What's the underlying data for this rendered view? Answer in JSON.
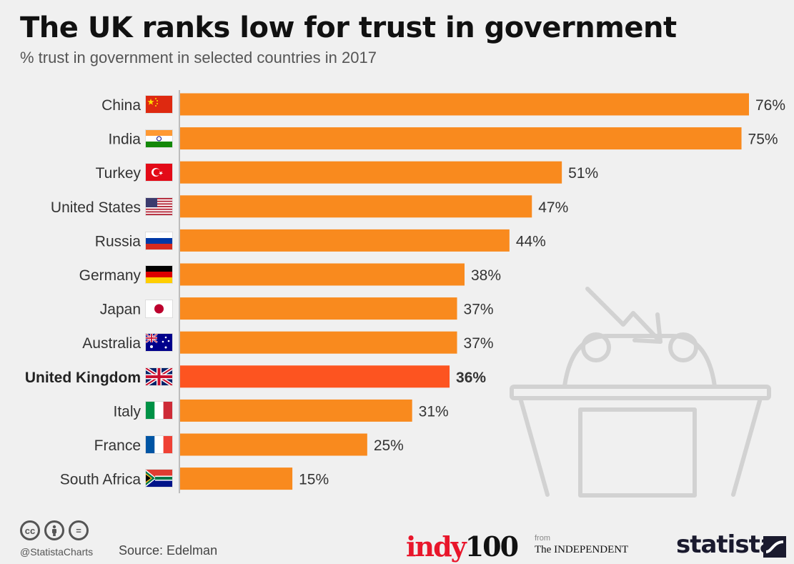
{
  "title": "The UK ranks low for trust in government",
  "subtitle": "% trust in government in selected countries in 2017",
  "chart_data": {
    "type": "bar",
    "orientation": "horizontal",
    "categories": [
      "China",
      "India",
      "Turkey",
      "United States",
      "Russia",
      "Germany",
      "Japan",
      "Australia",
      "United Kingdom",
      "Italy",
      "France",
      "South Africa"
    ],
    "values": [
      76,
      75,
      51,
      47,
      44,
      38,
      37,
      37,
      36,
      31,
      25,
      15
    ],
    "value_labels": [
      "76%",
      "75%",
      "51%",
      "47%",
      "44%",
      "38%",
      "37%",
      "37%",
      "36%",
      "31%",
      "25%",
      "15%"
    ],
    "highlight": "United Kingdom",
    "colors": {
      "bar": "#f98a1e",
      "highlight": "#fd5420"
    },
    "xlim": [
      0,
      76
    ],
    "grid": false
  },
  "footer": {
    "handle": "@StatistaCharts",
    "source": "Source: Edelman",
    "indy_brand": "indy",
    "indy_num": "100",
    "from": "from",
    "independent": "The INDEPENDENT",
    "statista": "statista",
    "cc_icons": [
      "cc",
      "by",
      "="
    ]
  }
}
